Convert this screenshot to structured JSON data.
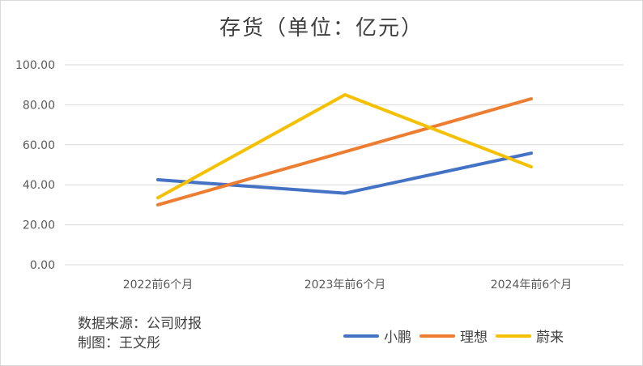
{
  "chart_data": {
    "type": "line",
    "title": "存货（单位：亿元）",
    "categories": [
      "2022前6个月",
      "2023年前6个月",
      "2024年前6个月"
    ],
    "y_ticks": [
      "0.00",
      "20.00",
      "40.00",
      "60.00",
      "80.00",
      "100.00"
    ],
    "ylim": [
      0,
      100
    ],
    "grid": true,
    "legend_position": "bottom-right",
    "series": [
      {
        "name": "小鹏",
        "color": "#4472c4",
        "values": [
          42.5,
          35.8,
          55.8
        ]
      },
      {
        "name": "理想",
        "color": "#ed7d31",
        "values": [
          30.0,
          56.5,
          83.0
        ]
      },
      {
        "name": "蔚来",
        "color": "#f5c000",
        "values": [
          33.5,
          85.0,
          49.0
        ]
      }
    ]
  },
  "footer": {
    "source": "数据来源：公司财报",
    "author": "制图：王文彤"
  }
}
